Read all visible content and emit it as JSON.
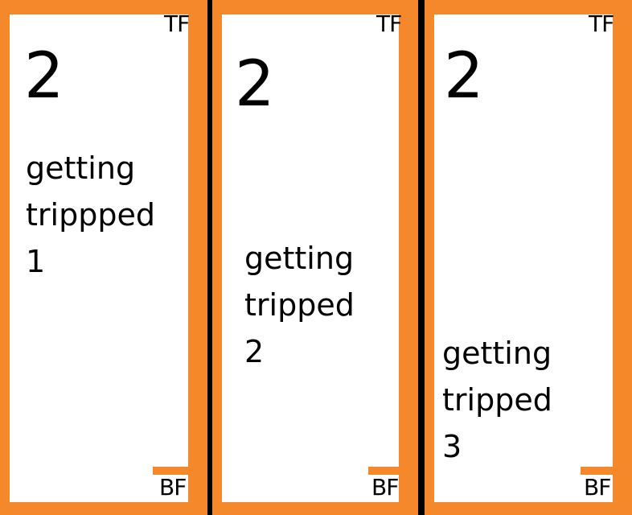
{
  "cards": [
    {
      "corner_top": "TF",
      "corner_bottom": "BF",
      "number": "2",
      "lines": [
        "getting",
        "trippped",
        "1"
      ]
    },
    {
      "corner_top": "TF",
      "corner_bottom": "BF",
      "number": "2",
      "lines": [
        "getting",
        "tripped",
        "2"
      ]
    },
    {
      "corner_top": "TF",
      "corner_bottom": "BF",
      "number": "2",
      "lines": [
        "getting",
        "tripped",
        "3"
      ]
    }
  ],
  "colors": {
    "background": "#000000",
    "border": "#f6882c",
    "card": "#ffffff"
  }
}
